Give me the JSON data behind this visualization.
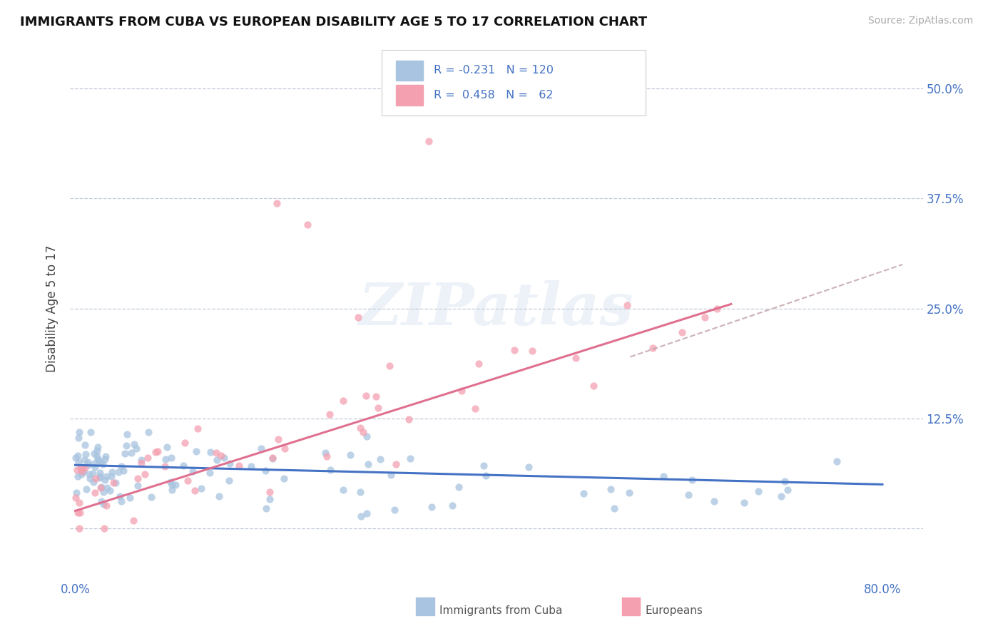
{
  "title": "IMMIGRANTS FROM CUBA VS EUROPEAN DISABILITY AGE 5 TO 17 CORRELATION CHART",
  "source": "Source: ZipAtlas.com",
  "ylabel": "Disability Age 5 to 17",
  "yticks": [
    0.0,
    0.125,
    0.25,
    0.375,
    0.5
  ],
  "ytick_labels": [
    "",
    "12.5%",
    "25.0%",
    "37.5%",
    "50.0%"
  ],
  "xlim": [
    -0.005,
    0.84
  ],
  "ylim": [
    -0.05,
    0.55
  ],
  "watermark": "ZIPatlas",
  "color_cuba": "#a8c4e0",
  "color_europe": "#f4a0b0",
  "color_text_blue": "#4472C4",
  "color_trend_cuba": "#4472C4",
  "color_trend_europe": "#e07090",
  "color_grid": "#c0c8d8",
  "color_dashed": "#c0a0a8"
}
